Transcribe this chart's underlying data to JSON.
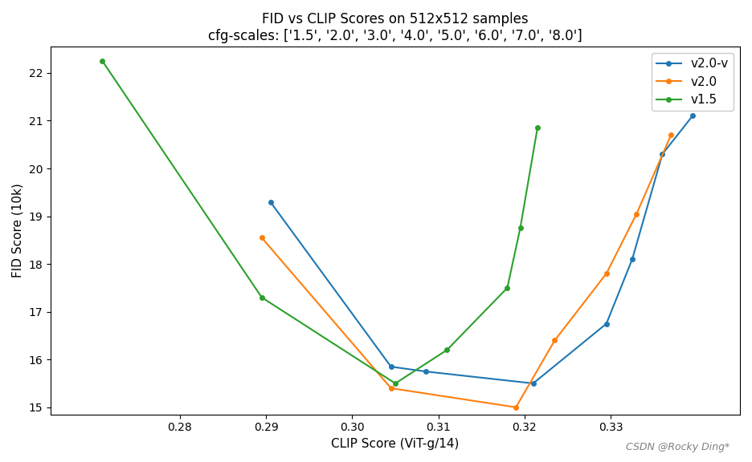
{
  "title_line1": "FID vs CLIP Scores on 512x512 samples",
  "title_line2": "cfg-scales: ['1.5', '2.0', '3.0', '4.0', '5.0', '6.0', '7.0', '8.0']",
  "xlabel": "CLIP Score (ViT-g/14)",
  "ylabel": "FID Score (10k)",
  "watermark": "CSDN @Rocky Ding*",
  "v2_0_v": {
    "label": "v2.0-v",
    "color": "#1f77b4",
    "clip": [
      0.2905,
      0.3045,
      0.3085,
      0.321,
      0.3295,
      0.3325,
      0.336,
      0.3395
    ],
    "fid": [
      19.3,
      15.85,
      15.75,
      15.5,
      16.75,
      18.1,
      20.3,
      21.1
    ]
  },
  "v2_0": {
    "label": "v2.0",
    "color": "#ff7f0e",
    "clip": [
      0.2895,
      0.3045,
      0.319,
      0.3235,
      0.3295,
      0.333,
      0.337
    ],
    "fid": [
      18.55,
      15.4,
      15.0,
      16.4,
      17.8,
      19.05,
      20.7
    ]
  },
  "v1_5": {
    "label": "v1.5",
    "color": "#2ca02c",
    "clip": [
      0.271,
      0.2895,
      0.305,
      0.311,
      0.318,
      0.3195,
      0.3215
    ],
    "fid": [
      22.25,
      17.3,
      15.5,
      16.2,
      17.5,
      18.75,
      20.85
    ]
  },
  "xlim": [
    0.265,
    0.345
  ],
  "ylim": [
    14.85,
    22.55
  ],
  "xticks": [
    0.28,
    0.29,
    0.3,
    0.31,
    0.32,
    0.33
  ],
  "yticks": [
    15,
    16,
    17,
    18,
    19,
    20,
    21,
    22
  ],
  "legend_loc": "upper right",
  "figsize": [
    9.36,
    5.76
  ],
  "dpi": 100,
  "title_fontsize": 12,
  "axis_label_fontsize": 11,
  "legend_fontsize": 11,
  "marker_size": 4,
  "line_width": 1.5
}
